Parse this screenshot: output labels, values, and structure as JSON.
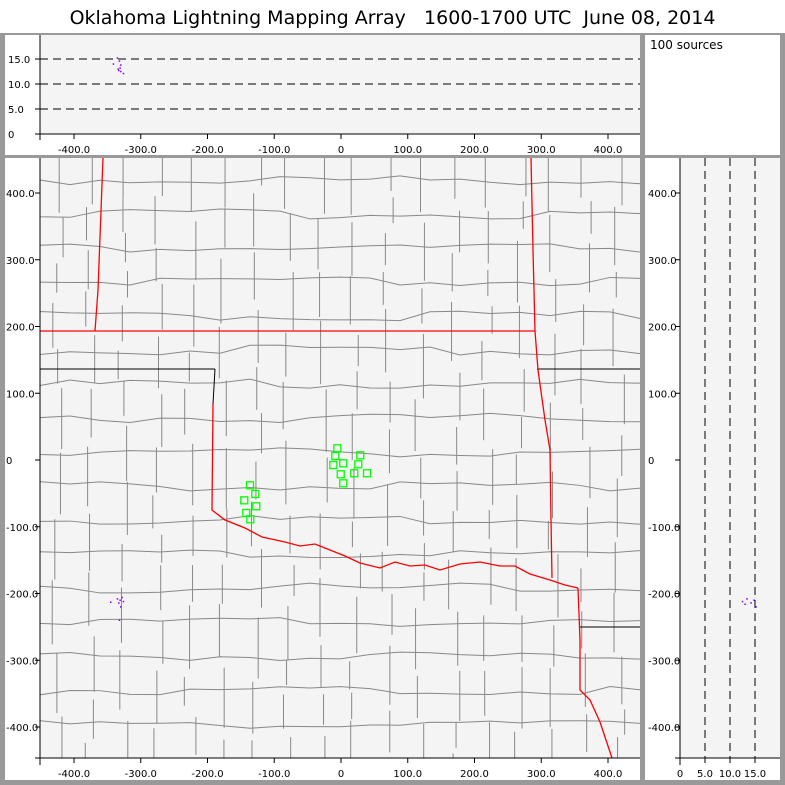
{
  "title": "Oklahoma Lightning Mapping Array   1600-1700 UTC  June 08, 2014",
  "source_count_label": "100 sources",
  "colors": {
    "background": "#f4f4f4",
    "state_border": "#ff0000",
    "county": "#888888",
    "station": "#00ff00",
    "source": "#8000ff"
  },
  "chart_data": [
    {
      "type": "scatter",
      "panel": "altitude-vs-east-west",
      "xlim": [
        -460,
        440
      ],
      "ylim": [
        0,
        20
      ],
      "xticks": [
        "-400.0",
        "-300.0",
        "-200.0",
        "-100.0",
        "0",
        "100.0",
        "200.0",
        "300.0",
        "400.0"
      ],
      "yticks": [
        "0",
        "5.0",
        "10.0",
        "15.0"
      ],
      "grid_lines_y": [
        5,
        10,
        15
      ],
      "points": [
        [
          -335,
          15.2
        ],
        [
          -341,
          14.0
        ],
        [
          -332,
          14.6
        ],
        [
          -330,
          13.8
        ],
        [
          -331,
          13.2
        ],
        [
          -333,
          12.7
        ],
        [
          -330,
          12.5
        ],
        [
          -326,
          12.1
        ],
        [
          -334,
          13.0
        ]
      ]
    },
    {
      "type": "scatter",
      "panel": "plan-view-map",
      "xlim": [
        -460,
        440
      ],
      "ylim": [
        -450,
        450
      ],
      "xticks": [
        "-400.0",
        "-300.0",
        "-200.0",
        "-100.0",
        "0",
        "100.0",
        "200.0",
        "300.0",
        "400.0"
      ],
      "yticks": [
        "400.0",
        "300.0",
        "200.0",
        "100.0",
        "0",
        "-100.0",
        "-200.0",
        "-300.0",
        "-400.0"
      ],
      "stations": [
        [
          -5.5,
          17.5
        ],
        [
          -8.5,
          6
        ],
        [
          28.9,
          7
        ],
        [
          -11.5,
          -7.5
        ],
        [
          3.4,
          -5
        ],
        [
          25.9,
          -6.4
        ],
        [
          -0.4,
          -21.4
        ],
        [
          19.9,
          -19.9
        ],
        [
          39,
          -19.9
        ],
        [
          3.4,
          -34.9
        ],
        [
          -136.3,
          -37.9
        ],
        [
          -128.4,
          -50.9
        ],
        [
          -144.9,
          -60.4
        ],
        [
          -126.9,
          -69.4
        ],
        [
          -141.9,
          -79.4
        ],
        [
          -135.9,
          -88.8
        ]
      ],
      "sources": [
        [
          -335,
          -208
        ],
        [
          -331,
          -210
        ],
        [
          -328,
          -206
        ],
        [
          -333,
          -214
        ],
        [
          -326,
          -212
        ],
        [
          -345,
          -213
        ],
        [
          -330,
          -220
        ],
        [
          -332,
          -240
        ]
      ]
    },
    {
      "type": "scatter",
      "panel": "north-south-vs-altitude",
      "xlim": [
        0,
        20
      ],
      "ylim": [
        -450,
        450
      ],
      "xticks": [
        "0",
        "5.0",
        "10.0",
        "15.0"
      ],
      "yticks": [
        "400.0",
        "300.0",
        "200.0",
        "100.0",
        "0",
        "-100.0",
        "-200.0",
        "-300.0",
        "-400.0"
      ],
      "grid_lines_x": [
        5,
        10,
        15
      ],
      "points": [
        [
          12.5,
          -212
        ],
        [
          13.4,
          -208
        ],
        [
          14.2,
          -214
        ],
        [
          14.8,
          -210
        ],
        [
          15.2,
          -220
        ],
        [
          13.0,
          -216
        ]
      ]
    }
  ]
}
